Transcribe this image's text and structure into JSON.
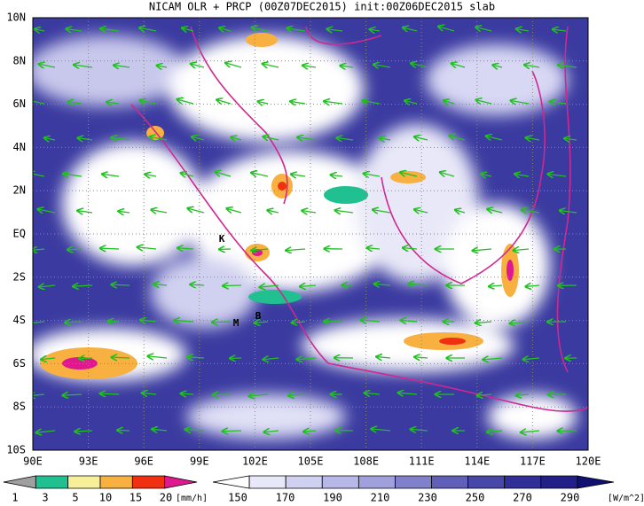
{
  "title": "NICAM OLR + PRCP (00Z07DEC2015) init:00Z06DEC2015 slab",
  "lat_labels": [
    "10N",
    "8N",
    "6N",
    "4N",
    "2N",
    "EQ",
    "2S",
    "4S",
    "6S",
    "8S",
    "10S"
  ],
  "lon_labels": [
    "90E",
    "93E",
    "96E",
    "99E",
    "102E",
    "105E",
    "108E",
    "111E",
    "114E",
    "117E",
    "120E"
  ],
  "markers": [
    "K",
    "M",
    "B"
  ],
  "precip_legend": {
    "colors": [
      "#a0a0a0",
      "#20c090",
      "#f8f098",
      "#f8b040",
      "#f03010",
      "#e01890"
    ],
    "ticks": [
      "1",
      "3",
      "5",
      "10",
      "15",
      "20"
    ],
    "unit": "[mm/h]"
  },
  "olr_legend": {
    "colors": [
      "#ffffff",
      "#e8e8f8",
      "#d0d0f0",
      "#b8b8e8",
      "#a0a0dc",
      "#8080cc",
      "#6060b8",
      "#4848a8",
      "#303098",
      "#202088",
      "#101070"
    ],
    "ticks": [
      "150",
      "170",
      "190",
      "210",
      "230",
      "250",
      "270",
      "290"
    ],
    "unit": "[W/m^2]"
  }
}
